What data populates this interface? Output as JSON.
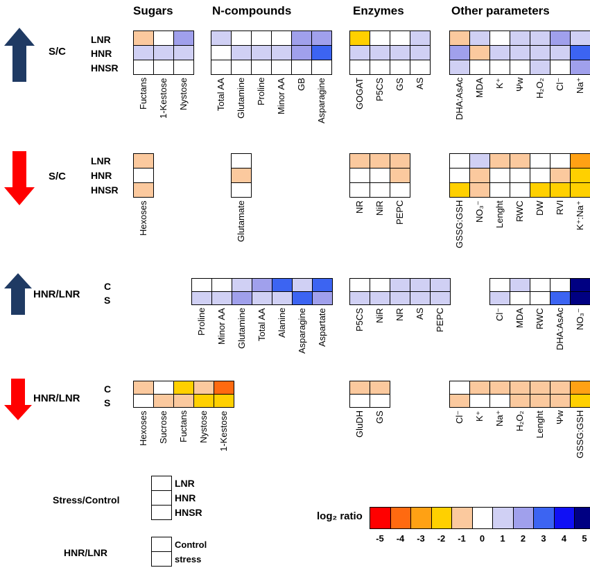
{
  "colors": {
    "n5": "#ff0000",
    "n4": "#ff6a10",
    "n3": "#ffa114",
    "n2": "#ffd000",
    "n1": "#fbc99e",
    "z": "#ffffff",
    "p1": "#d0d0f4",
    "p2": "#a0a0ec",
    "p3": "#3c64f2",
    "p4": "#1010f5",
    "p5": "#000082",
    "arrow_up": "#1f3a63",
    "arrow_down": "#ff0000"
  },
  "headers": {
    "sugars": "Sugars",
    "ncompounds": "N-compounds",
    "enzymes": "Enzymes",
    "other": "Other parameters"
  },
  "row_labels": {
    "lnr": "LNR",
    "hnr": "HNR",
    "hnsr": "HNSR",
    "c": "C",
    "s": "S"
  },
  "section_labels": {
    "sc1": "S/C",
    "sc2": "S/C",
    "hnrlnr1": "HNR/LNR",
    "hnrlnr2": "HNR/LNR"
  },
  "sections": [
    {
      "id": "sec1",
      "blocks": [
        {
          "cols": [
            "Fuctans",
            "1-Kestose",
            "Nystose"
          ],
          "rows": [
            [
              "n1",
              "z",
              "p2"
            ],
            [
              "p1",
              "p1",
              "p1"
            ],
            [
              "z",
              "z",
              "z"
            ]
          ]
        },
        {
          "cols": [
            "Total AA",
            "Glutamine",
            "Proline",
            "Minor AA",
            "GB",
            "Asparagine"
          ],
          "rows": [
            [
              "p1",
              "z",
              "z",
              "z",
              "p2",
              "p2"
            ],
            [
              "z",
              "p1",
              "p1",
              "p1",
              "p2",
              "p3"
            ],
            [
              "z",
              "z",
              "z",
              "z",
              "z",
              "z"
            ]
          ]
        },
        {
          "cols": [
            "GOGAT",
            "P5CS",
            "GS",
            "AS"
          ],
          "rows": [
            [
              "n2",
              "z",
              "z",
              "p1"
            ],
            [
              "p1",
              "p1",
              "p1",
              "p1"
            ],
            [
              "z",
              "z",
              "z",
              "z"
            ]
          ]
        },
        {
          "cols": [
            "DHA:AsAc",
            "MDA",
            "K⁺",
            "Ψw",
            "H₂O₂",
            "Cl⁻",
            "Na⁺"
          ],
          "rows": [
            [
              "n1",
              "p1",
              "z",
              "p1",
              "p1",
              "p2",
              "p1"
            ],
            [
              "p2",
              "n1",
              "p1",
              "p1",
              "p1",
              "p1",
              "p3"
            ],
            [
              "p1",
              "z",
              "z",
              "z",
              "p1",
              "z",
              "p2"
            ]
          ]
        }
      ]
    },
    {
      "id": "sec2",
      "blocks": [
        {
          "cols": [
            "Hexoses"
          ],
          "rows": [
            [
              "n1"
            ],
            [
              "z"
            ],
            [
              "n1"
            ]
          ]
        },
        {
          "cols": [
            "Glutamate"
          ],
          "rows": [
            [
              "z"
            ],
            [
              "n1"
            ],
            [
              "z"
            ]
          ]
        },
        {
          "cols": [
            "NR",
            "NiR",
            "PEPC"
          ],
          "rows": [
            [
              "n1",
              "n1",
              "n1"
            ],
            [
              "z",
              "z",
              "n1"
            ],
            [
              "z",
              "z",
              "z"
            ]
          ]
        },
        {
          "cols": [
            "GSSG:GSH",
            "NO₃⁻",
            "Lenght",
            "RWC",
            "DW",
            "RVI",
            "K⁺:Na⁺"
          ],
          "rows": [
            [
              "z",
              "p1",
              "n1",
              "n1",
              "z",
              "z",
              "n3"
            ],
            [
              "z",
              "n1",
              "z",
              "z",
              "z",
              "n1",
              "n2"
            ],
            [
              "n2",
              "n1",
              "z",
              "z",
              "n2",
              "n2",
              "n2"
            ]
          ]
        }
      ]
    },
    {
      "id": "sec3",
      "blocks": [
        {
          "cols": [
            "Proline",
            "Minor AA",
            "Glutamine",
            "Total AA",
            "Alanine",
            "Asparagine",
            "Aspartate"
          ],
          "rows": [
            [
              "z",
              "z",
              "p1",
              "p2",
              "p3",
              "p1",
              "p3"
            ],
            [
              "p1",
              "p1",
              "p2",
              "p1",
              "p1",
              "p3",
              "p2"
            ]
          ]
        },
        {
          "cols": [
            "P5CS",
            "NiR",
            "NR",
            "AS",
            "PEPC"
          ],
          "rows": [
            [
              "z",
              "z",
              "p1",
              "p1",
              "p1"
            ],
            [
              "p1",
              "p1",
              "p1",
              "p1",
              "p1"
            ]
          ]
        },
        {
          "cols": [
            "Cl⁻",
            "MDA",
            "RWC",
            "DHA:AsAc",
            "NO₃⁻"
          ],
          "rows": [
            [
              "z",
              "p1",
              "z",
              "z",
              "p5"
            ],
            [
              "p1",
              "z",
              "z",
              "p3",
              "p5"
            ]
          ]
        }
      ]
    },
    {
      "id": "sec4",
      "blocks": [
        {
          "cols": [
            "Hexoses",
            "Sucrose",
            "Fuctans",
            "Nystose",
            "1-Kestose"
          ],
          "rows": [
            [
              "n1",
              "z",
              "n2",
              "n1",
              "n4"
            ],
            [
              "z",
              "n1",
              "n1",
              "n2",
              "n2"
            ]
          ]
        },
        {
          "cols": [
            "GluDH",
            "GS"
          ],
          "rows": [
            [
              "n1",
              "n1"
            ],
            [
              "z",
              "z"
            ]
          ]
        },
        {
          "cols": [
            "Cl⁻",
            "K⁺",
            "Na⁺",
            "H₂O₂",
            "Lenght",
            "Ψw",
            "GSSG:GSH"
          ],
          "rows": [
            [
              "z",
              "n1",
              "n1",
              "n1",
              "n1",
              "n1",
              "n3"
            ],
            [
              "n1",
              "z",
              "z",
              "n1",
              "n1",
              "n1",
              "n2"
            ]
          ]
        }
      ]
    }
  ],
  "legend": {
    "stress_control": "Stress/Control",
    "sc_rows": [
      "LNR",
      "HNR",
      "HNSR"
    ],
    "hnr_lnr": "HNR/LNR",
    "hl_rows": [
      "Control",
      "stress"
    ]
  },
  "scale": {
    "label": "log₂ ratio",
    "values": [
      "-5",
      "-4",
      "-3",
      "-2",
      "-1",
      "0",
      "1",
      "2",
      "3",
      "4",
      "5"
    ],
    "keys": [
      "n5",
      "n4",
      "n3",
      "n2",
      "n1",
      "z",
      "p1",
      "p2",
      "p3",
      "p4",
      "p5"
    ]
  }
}
